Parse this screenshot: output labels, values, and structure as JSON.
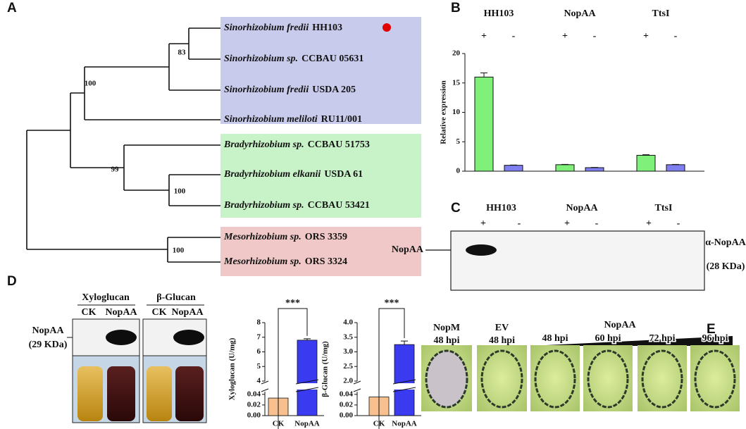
{
  "panel_A": {
    "letter": "A",
    "leaves": [
      {
        "genus": "Sinorhizobium fredii",
        "strain": "HH103"
      },
      {
        "genus": "Sinorhizobium sp.",
        "strain": "CCBAU 05631"
      },
      {
        "genus": "Sinorhizobium fredii",
        "strain": "USDA 205"
      },
      {
        "genus": "Sinorhizobium meliloti",
        "strain": "RU11/001"
      },
      {
        "genus": "Bradyrhizobium sp.",
        "strain": "CCBAU 51753"
      },
      {
        "genus": "Bradyrhizobium elkanii",
        "strain": "USDA 61"
      },
      {
        "genus": "Bradyrhizobium sp.",
        "strain": "CCBAU 53421"
      },
      {
        "genus": "Mesorhizobium sp.",
        "strain": "ORS 3359"
      },
      {
        "genus": "Mesorhizobium sp.",
        "strain": "ORS 3324"
      }
    ],
    "bootstrap": [
      83,
      100,
      99,
      100,
      100
    ]
  },
  "panel_B": {
    "letter": "B",
    "chart": {
      "type": "bar",
      "ylabel": "Relative expression",
      "categories": [
        "HH103",
        "NopAA",
        "TtsI"
      ],
      "series": [
        {
          "name": "+",
          "color": "#7ff07a",
          "values": [
            16,
            1.1,
            2.7
          ],
          "errors": [
            0.7,
            0.05,
            0.1
          ]
        },
        {
          "name": "-",
          "color": "#7f7ff0",
          "values": [
            1,
            0.6,
            1.1
          ],
          "errors": [
            0.05,
            0.05,
            0.05
          ]
        }
      ],
      "ylim": [
        0,
        20
      ],
      "yticks": [
        0,
        5,
        10,
        15,
        20
      ]
    }
  },
  "panel_C": {
    "letter": "C",
    "lanes": [
      {
        "strain": "HH103",
        "sign": "+"
      },
      {
        "sign": "-"
      },
      {
        "strain": "NopAA",
        "sign": "+"
      },
      {
        "sign": "-"
      },
      {
        "strain": "TtsI",
        "sign": "+"
      },
      {
        "sign": "-"
      }
    ],
    "band_label": "NopAA",
    "antibody": "α-NopAA",
    "size": "(28 KDa)"
  },
  "panel_D": {
    "letter": "D",
    "blots": [
      {
        "substrate": "Xyloglucan",
        "lanes": [
          "CK",
          "NopAA"
        ]
      },
      {
        "substrate": "β-Glucan",
        "lanes": [
          "CK",
          "NopAA"
        ]
      }
    ],
    "band_label": "NopAA",
    "band_size": "(29 KDa)",
    "charts": [
      {
        "type": "broken-bar",
        "ylabel": "Xyloglucan (U/mg)",
        "categories": [
          "CK",
          "NopAA"
        ],
        "colors": [
          "#f7c08e",
          "#3a3af0"
        ],
        "values": [
          0.033,
          6.8
        ],
        "errors": [
          0.015,
          0.1
        ],
        "ylim_lower": [
          0,
          0.045
        ],
        "yticks_lower": [
          {
            "value": 0,
            "label": "0.00"
          },
          0.02,
          0.04
        ],
        "ylim_upper": [
          4,
          8
        ],
        "yticks_upper": [
          4,
          5,
          6,
          7,
          8
        ],
        "significance": "***"
      },
      {
        "type": "broken-bar",
        "ylabel": "β-Glucan (U/mg)",
        "categories": [
          "CK",
          "NopAA"
        ],
        "colors": [
          "#f7c08e",
          "#3a3af0"
        ],
        "values": [
          0.035,
          3.25
        ],
        "errors": [
          0.015,
          0.12
        ],
        "ylim_lower": [
          0,
          0.045
        ],
        "yticks_lower": [
          {
            "value": 0,
            "label": "0.00"
          },
          0.02,
          0.04
        ],
        "ylim_upper": [
          2,
          4
        ],
        "yticks_upper": [
          {
            "value": 2,
            "label": "2.0"
          },
          2.5,
          {
            "value": 3,
            "label": "3.0"
          },
          3.5,
          {
            "value": 4,
            "label": "4.0"
          }
        ],
        "significance": "***"
      }
    ]
  },
  "panel_E": {
    "letter": "E",
    "controls": [
      {
        "name": "NopM",
        "time": "48 hpi"
      },
      {
        "name": "EV",
        "time": "48 hpi"
      }
    ],
    "treatment": "NopAA",
    "times": [
      "48 hpi",
      "60 hpi",
      "72 hpi",
      "96 hpi"
    ]
  }
}
